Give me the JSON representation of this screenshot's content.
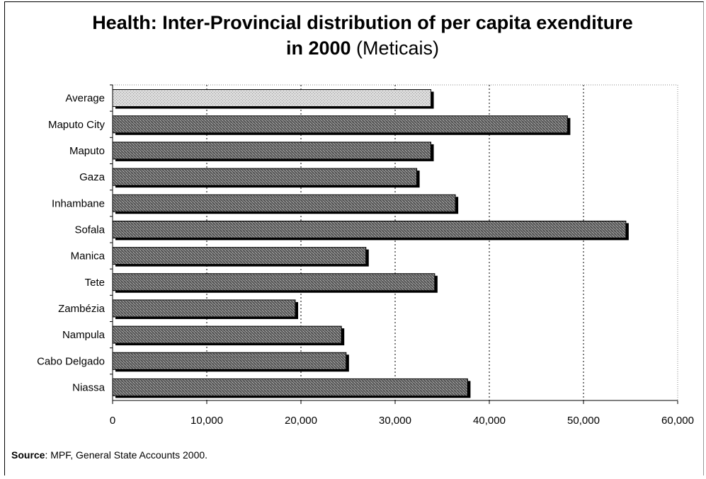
{
  "chart_data": {
    "type": "bar",
    "orientation": "horizontal",
    "title_line1": "Health: Inter-Provincial distribution of per capita exenditure",
    "title_line2": "in 2000",
    "title_unit": "(Meticais)",
    "categories": [
      "Average",
      "Maputo City",
      "Maputo",
      "Gaza",
      "Inhambane",
      "Sofala",
      "Manica",
      "Tete",
      "Zambézia",
      "Nampula",
      "Cabo Delgado",
      "Niassa"
    ],
    "values": [
      33800,
      48300,
      33800,
      32300,
      36400,
      54500,
      26900,
      34200,
      19400,
      24300,
      24800,
      37700
    ],
    "highlight_category": "Average",
    "xlim": [
      0,
      60000
    ],
    "xticks": [
      0,
      10000,
      20000,
      30000,
      40000,
      50000,
      60000
    ],
    "xtick_labels": [
      "0",
      "10,000",
      "20,000",
      "30,000",
      "40,000",
      "50,000",
      "60,000"
    ],
    "grid": "vertical dotted",
    "legend": "none"
  },
  "source": {
    "label": "Source",
    "text": ": MPF, General State Accounts 2000."
  },
  "colors": {
    "bar": "#555555",
    "average_bar": "#cfcfcf",
    "shadow": "#000000"
  }
}
